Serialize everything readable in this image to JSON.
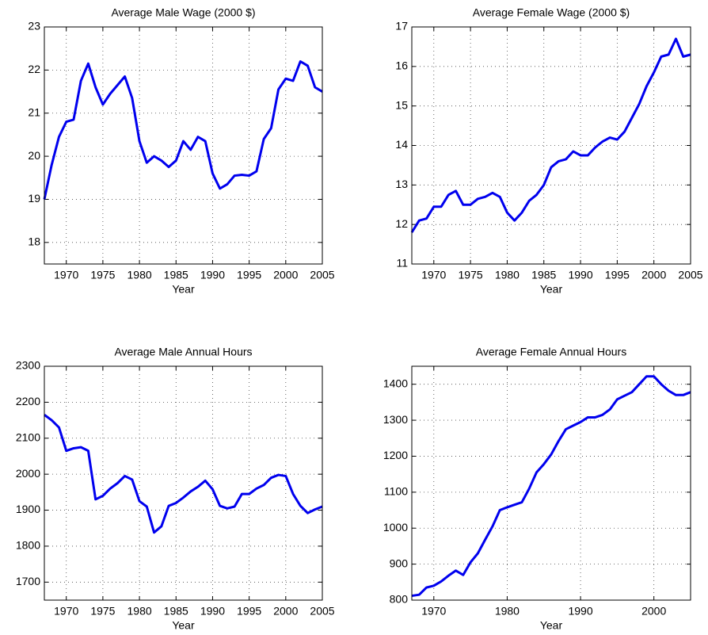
{
  "chart_data": [
    {
      "type": "line",
      "title": "Average Male Wage (2000 $)",
      "x_label": "Year",
      "x": [
        1967,
        1968,
        1969,
        1970,
        1971,
        1972,
        1973,
        1974,
        1975,
        1976,
        1977,
        1978,
        1979,
        1980,
        1981,
        1982,
        1983,
        1984,
        1985,
        1986,
        1987,
        1988,
        1989,
        1990,
        1991,
        1992,
        1993,
        1994,
        1995,
        1996,
        1997,
        1998,
        1999,
        2000,
        2001,
        2002,
        2003,
        2004,
        2005
      ],
      "values": [
        19.0,
        19.8,
        20.45,
        20.8,
        20.85,
        21.75,
        22.15,
        21.6,
        21.2,
        21.45,
        21.65,
        21.85,
        21.35,
        20.35,
        19.85,
        20.0,
        19.9,
        19.75,
        19.9,
        20.35,
        20.15,
        20.45,
        20.35,
        19.6,
        19.25,
        19.35,
        19.55,
        19.57,
        19.55,
        19.65,
        20.4,
        20.65,
        21.55,
        21.8,
        21.75,
        22.2,
        22.1,
        21.6,
        21.5
      ],
      "color": "#0000ee",
      "xlim": [
        1967,
        2005
      ],
      "xticks": [
        1970,
        1975,
        1980,
        1985,
        1990,
        1995,
        2000,
        2005
      ],
      "ylim": [
        17.5,
        23
      ],
      "yticks": [
        18,
        19,
        20,
        21,
        22,
        23
      ],
      "grid": true
    },
    {
      "type": "line",
      "title": "Average Female Wage (2000 $)",
      "x_label": "Year",
      "x": [
        1967,
        1968,
        1969,
        1970,
        1971,
        1972,
        1973,
        1974,
        1975,
        1976,
        1977,
        1978,
        1979,
        1980,
        1981,
        1982,
        1983,
        1984,
        1985,
        1986,
        1987,
        1988,
        1989,
        1990,
        1991,
        1992,
        1993,
        1994,
        1995,
        1996,
        1997,
        1998,
        1999,
        2000,
        2001,
        2002,
        2003,
        2004,
        2005
      ],
      "values": [
        11.8,
        12.1,
        12.15,
        12.45,
        12.45,
        12.75,
        12.85,
        12.5,
        12.5,
        12.65,
        12.7,
        12.8,
        12.7,
        12.3,
        12.1,
        12.3,
        12.6,
        12.75,
        13.0,
        13.45,
        13.6,
        13.65,
        13.85,
        13.75,
        13.75,
        13.95,
        14.1,
        14.2,
        14.15,
        14.35,
        14.7,
        15.05,
        15.5,
        15.85,
        16.25,
        16.3,
        16.7,
        16.25,
        16.3
      ],
      "color": "#0000ee",
      "xlim": [
        1967,
        2005
      ],
      "xticks": [
        1970,
        1975,
        1980,
        1985,
        1990,
        1995,
        2000,
        2005
      ],
      "ylim": [
        11,
        17
      ],
      "yticks": [
        11,
        12,
        13,
        14,
        15,
        16,
        17
      ],
      "grid": true
    },
    {
      "type": "line",
      "title": "Average Male Annual Hours",
      "x_label": "Year",
      "x": [
        1967,
        1968,
        1969,
        1970,
        1971,
        1972,
        1973,
        1974,
        1975,
        1976,
        1977,
        1978,
        1979,
        1980,
        1981,
        1982,
        1983,
        1984,
        1985,
        1986,
        1987,
        1988,
        1989,
        1990,
        1991,
        1992,
        1993,
        1994,
        1995,
        1996,
        1997,
        1998,
        1999,
        2000,
        2001,
        2002,
        2003,
        2004,
        2005
      ],
      "values": [
        2165,
        2150,
        2130,
        2065,
        2072,
        2075,
        2065,
        1930,
        1940,
        1960,
        1975,
        1995,
        1985,
        1925,
        1910,
        1838,
        1855,
        1912,
        1920,
        1935,
        1952,
        1965,
        1982,
        1958,
        1912,
        1905,
        1910,
        1945,
        1945,
        1960,
        1970,
        1990,
        1998,
        1995,
        1945,
        1912,
        1892,
        1902,
        1910
      ],
      "color": "#0000ee",
      "xlim": [
        1967,
        2005
      ],
      "xticks": [
        1970,
        1975,
        1980,
        1985,
        1990,
        1995,
        2000,
        2005
      ],
      "ylim": [
        1650,
        2300
      ],
      "yticks": [
        1700,
        1800,
        1900,
        2000,
        2100,
        2200,
        2300
      ],
      "grid": true
    },
    {
      "type": "line",
      "title": "Average Female Annual Hours",
      "x_label": "Year",
      "x": [
        1967,
        1968,
        1969,
        1970,
        1971,
        1972,
        1973,
        1974,
        1975,
        1976,
        1977,
        1978,
        1979,
        1980,
        1981,
        1982,
        1983,
        1984,
        1985,
        1986,
        1987,
        1988,
        1989,
        1990,
        1991,
        1992,
        1993,
        1994,
        1995,
        1996,
        1997,
        1998,
        1999,
        2000,
        2001,
        2002,
        2003,
        2004,
        2005
      ],
      "values": [
        812,
        815,
        835,
        840,
        852,
        868,
        882,
        870,
        905,
        930,
        968,
        1005,
        1050,
        1058,
        1065,
        1072,
        1110,
        1155,
        1178,
        1205,
        1242,
        1275,
        1285,
        1295,
        1308,
        1308,
        1315,
        1330,
        1358,
        1368,
        1378,
        1400,
        1422,
        1422,
        1400,
        1382,
        1370,
        1370,
        1378
      ],
      "color": "#0000ee",
      "xlim": [
        1967,
        2005
      ],
      "xticks": [
        1970,
        1980,
        1990,
        2000
      ],
      "ylim": [
        800,
        1450
      ],
      "yticks": [
        800,
        900,
        1000,
        1100,
        1200,
        1300,
        1400
      ],
      "grid": true
    }
  ]
}
